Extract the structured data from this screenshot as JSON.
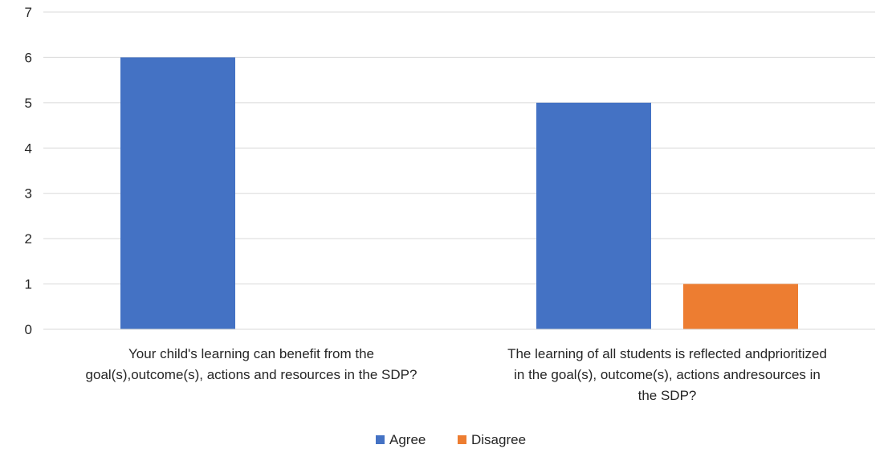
{
  "chart_data": {
    "type": "bar",
    "categories": [
      [
        "Your child's learning can benefit from the",
        "goal(s),outcome(s), actions and resources in the SDP?"
      ],
      [
        "The learning of all students is reflected andprioritized",
        "in the goal(s), outcome(s), actions andresources in",
        "the SDP?"
      ]
    ],
    "series": [
      {
        "name": "Agree",
        "values": [
          6,
          5
        ],
        "color": "#4472C4"
      },
      {
        "name": "Disagree",
        "values": [
          0,
          1
        ],
        "color": "#ED7D31"
      }
    ],
    "ylim": [
      0,
      7
    ],
    "yticks": [
      0,
      1,
      2,
      3,
      4,
      5,
      6,
      7
    ],
    "grid": true,
    "legend_position": "bottom"
  }
}
